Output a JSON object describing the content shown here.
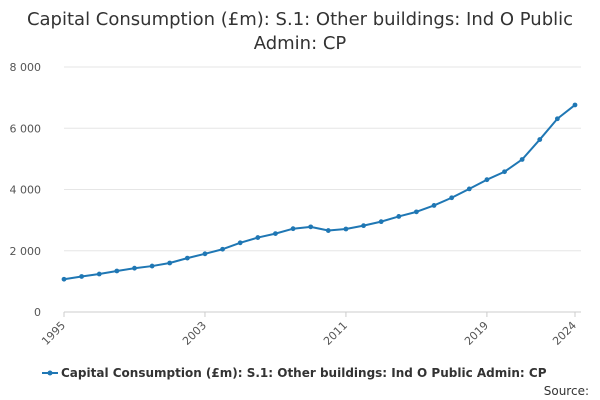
{
  "chart_data": {
    "type": "line",
    "title": "Capital Consumption (£m): S.1: Other buildings: Ind O Public Admin: CP",
    "title_lines": [
      "Capital Consumption (£m): S.1: Other buildings: Ind O Public",
      "Admin: CP"
    ],
    "xlabel": "",
    "ylabel": "",
    "x": [
      1995,
      1996,
      1997,
      1998,
      1999,
      2000,
      2001,
      2002,
      2003,
      2004,
      2005,
      2006,
      2007,
      2008,
      2009,
      2010,
      2011,
      2012,
      2013,
      2014,
      2015,
      2016,
      2017,
      2018,
      2019,
      2020,
      2021,
      2022,
      2023,
      2024
    ],
    "x_tick_labels": [
      "1995",
      "2003",
      "2011",
      "2019",
      "2024"
    ],
    "x_tick_values": [
      1995,
      2003,
      2011,
      2019,
      2024
    ],
    "xlim": [
      1995,
      2024
    ],
    "y_tick_labels": [
      "0",
      "2 000",
      "4 000",
      "6 000",
      "8 000"
    ],
    "y_tick_values": [
      0,
      2000,
      4000,
      6000,
      8000
    ],
    "ylim": [
      0,
      8000
    ],
    "series": [
      {
        "name": "Capital Consumption (£m): S.1: Other buildings: Ind O Public Admin: CP",
        "color": "#1f77b4",
        "values": [
          1070,
          1160,
          1240,
          1340,
          1430,
          1500,
          1600,
          1760,
          1900,
          2050,
          2260,
          2430,
          2560,
          2720,
          2780,
          2660,
          2710,
          2820,
          2950,
          3120,
          3270,
          3480,
          3730,
          4020,
          4320,
          4580,
          4980,
          5630,
          6310,
          6760
        ]
      }
    ],
    "legend_position": "bottom",
    "grid": true
  },
  "footer": {
    "source_label": "Source:"
  },
  "colors": {
    "series": "#1f77b4",
    "text": "#333333",
    "grid": "#e6e6e6"
  }
}
